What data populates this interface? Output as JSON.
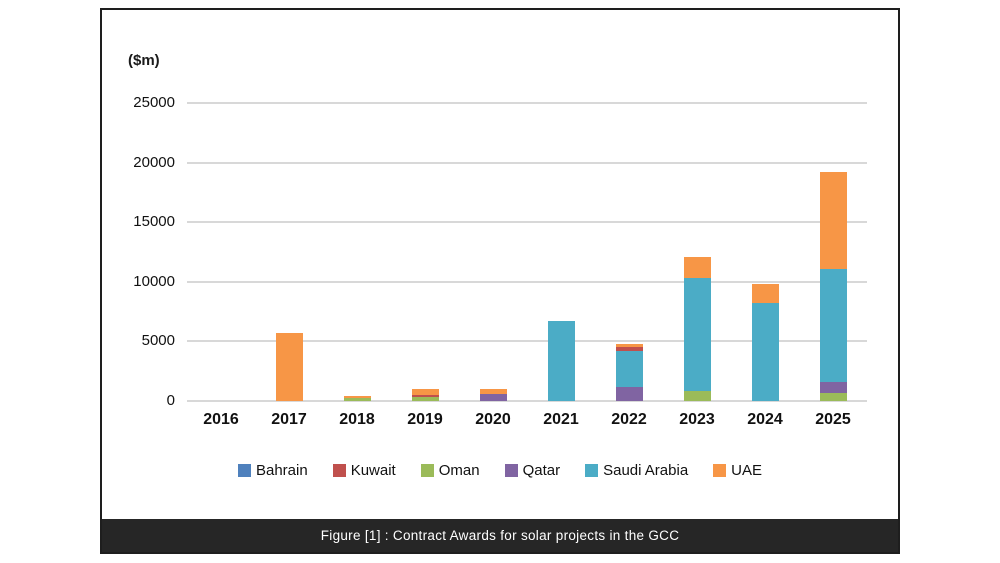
{
  "figure": {
    "unit_label": "($m)",
    "caption": "Figure [1] : Contract Awards for solar projects in the GCC"
  },
  "chart_data": {
    "type": "bar",
    "stacked": true,
    "title": "Contract Awards for solar projects in the GCC",
    "unit": "$m",
    "categories": [
      "2016",
      "2017",
      "2018",
      "2019",
      "2020",
      "2021",
      "2022",
      "2023",
      "2024",
      "2025"
    ],
    "series": [
      {
        "name": "Bahrain",
        "color": "#4F81BD",
        "values": [
          0,
          0,
          0,
          0,
          0,
          0,
          0,
          0,
          0,
          0
        ]
      },
      {
        "name": "Kuwait",
        "color": "#C0504D",
        "values": [
          0,
          0,
          0,
          200,
          0,
          0,
          300,
          0,
          0,
          0
        ]
      },
      {
        "name": "Oman",
        "color": "#9BBB59",
        "values": [
          0,
          0,
          250,
          300,
          0,
          0,
          0,
          800,
          0,
          700
        ]
      },
      {
        "name": "Qatar",
        "color": "#8064A2",
        "values": [
          0,
          0,
          0,
          0,
          600,
          0,
          1200,
          0,
          0,
          900
        ]
      },
      {
        "name": "Saudi Arabia",
        "color": "#4BACC6",
        "values": [
          0,
          0,
          0,
          0,
          0,
          6700,
          3000,
          9500,
          8200,
          9500
        ]
      },
      {
        "name": "UAE",
        "color": "#F79646",
        "values": [
          0,
          5700,
          150,
          550,
          450,
          0,
          300,
          1800,
          1600,
          8100
        ]
      }
    ],
    "stack_order_bottom_to_top": {
      "2016": [],
      "2017": [
        "UAE"
      ],
      "2018": [
        "Oman",
        "UAE"
      ],
      "2019": [
        "Oman",
        "Kuwait",
        "UAE"
      ],
      "2020": [
        "Qatar",
        "UAE"
      ],
      "2021": [
        "Saudi Arabia"
      ],
      "2022": [
        "Qatar",
        "Saudi Arabia",
        "Kuwait",
        "UAE"
      ],
      "2023": [
        "Oman",
        "Saudi Arabia",
        "UAE"
      ],
      "2024": [
        "Saudi Arabia",
        "UAE"
      ],
      "2025": [
        "Oman",
        "Qatar",
        "Saudi Arabia",
        "UAE"
      ]
    },
    "ylim": [
      0,
      25000
    ],
    "yticks": [
      25000,
      20000,
      15000,
      10000,
      5000,
      0
    ],
    "grid": "horizontal",
    "gridline_color": "#d8d8d8",
    "legend_position": "bottom",
    "legend": [
      "Bahrain",
      "Kuwait",
      "Oman",
      "Qatar",
      "Saudi Arabia",
      "UAE"
    ]
  },
  "colors": {
    "frame_border": "#1e1e1e",
    "caption_bar_bg": "#262626",
    "caption_text": "#ffffff"
  }
}
